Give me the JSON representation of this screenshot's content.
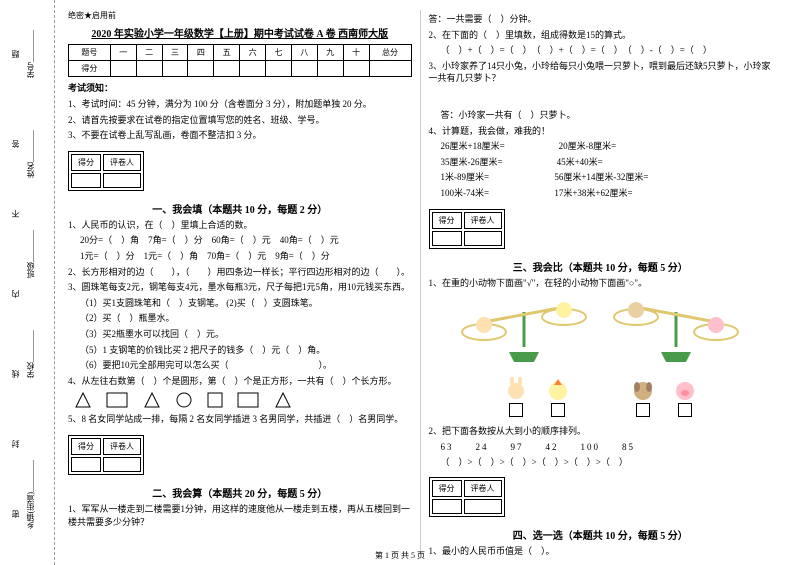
{
  "sidebar": {
    "items": [
      "学号________",
      "姓名________",
      "班级________",
      "学校________",
      "乡镇(街道)________"
    ],
    "markers": [
      "题",
      "答",
      "不",
      "内",
      "线",
      "封",
      "密"
    ]
  },
  "header": {
    "secret": "绝密★启用前",
    "title": "2020 年实验小学一年级数学【上册】期中考试试卷 A 卷 西南师大版"
  },
  "scoreTable": {
    "cols": [
      "题号",
      "一",
      "二",
      "三",
      "四",
      "五",
      "六",
      "七",
      "八",
      "九",
      "十",
      "总分"
    ],
    "row2": "得分"
  },
  "notice": {
    "label": "考试须知：",
    "items": [
      "1、考试时间：45 分钟，满分为 100 分（含卷面分 3 分），附加题单独 20 分。",
      "2、请首先按要求在试卷的指定位置填写您的姓名、班级、学号。",
      "3、不要在试卷上乱写乱画，卷面不整洁扣 3 分。"
    ]
  },
  "scorebox": {
    "c1": "得分",
    "c2": "评卷人"
  },
  "sec1": {
    "title": "一、我会填（本题共 10 分，每题 2 分）",
    "q1": "1、人民币的认识，在（　）里填上合适的数。",
    "q1lines": [
      "20分=（　）角　7角=（　）分　60角=（　）元　40角=（　）元",
      "1元=（　）分　1元=（　）角　70角=（　）元　9角=（　）分"
    ],
    "q2": "2、长方形相对的边（　　），（　　）用四条边一样长；平行四边形相对的边（　　）。",
    "q3": "3、圆珠笔每支2元，钢笔每支4元，墨水每瓶3元，尺子每把1元5角，用10元钱买东西。",
    "q3lines": [
      "（1）买1支圆珠笔和（　）支钢笔。 (2)买（　）支圆珠笔。",
      "（2）买（　）瓶墨水。",
      "（3）买2瓶墨水可以找回（　）元。",
      "（5）1 支钢笔的价钱比买 2 把尺子的钱多（　）元（　）角。",
      "（6）要把10元全部用完可以怎么买（　　　　　　　　　　）。"
    ],
    "q4": "4、从左往右数第（　）个是圆形，第（　）个是正方形，一共有（　）个长方形。",
    "q5": "5、8 名女同学站成一排，每隔 2 名女同学插进 3 名男同学，共插进（　）名男同学。"
  },
  "sec2": {
    "title": "二、我会算（本题共 20 分，每题 5 分）",
    "q1": "1、军军从一楼走到二楼需要1分钟，用这样的速度他从一楼走到五楼，再从五楼回到一楼共需要多少分钟？"
  },
  "right": {
    "ans1": "答：一共需要（　）分钟。",
    "q2": "2、在下面的（　）里填数，组成得数是15的算式。",
    "q2line": "（　）+（　）=（　）　（　）+（　）=（　）　（　）-（　）=（　）",
    "q3": "3、小玲家养了14只小兔，小玲给每只小兔喂一只萝卜，喂到最后还缺5只萝卜，小玲家一共有几只萝卜？",
    "ans3": "答：小玲家一共有（　）只萝卜。",
    "q4": "4、计算题，我会做，难我的！",
    "q4lines": [
      "26厘米+18厘米=　　　　　　20厘米-8厘米=",
      "35厘米-26厘米=　　　　　　45米+40米=",
      "1米-89厘米=　　　　　　　 56厘米+14厘米-32厘米=",
      "100米-74米=　　　　　　　 17米+38米+62厘米="
    ]
  },
  "sec3": {
    "title": "三、我会比（本题共 10 分，每题 5 分）",
    "q1": "1、在重的小动物下面画\"√\"，在轻的小动物下面画\"○\"。",
    "q2": "2、把下面各数按从大到小的顺序排列。",
    "nums": "63　　24　　97　　42　　100　　85",
    "blanks": "（　）>（　）>（　）>（　）>（　）>（　）"
  },
  "sec4": {
    "title": "四、选一选（本题共 10 分，每题 5 分）",
    "q1": "1、最小的人民币币值是（　）。"
  },
  "footer": "第 1 页 共 5 页",
  "colors": {
    "bunny": "#ffe0b0",
    "chick": "#fff2a0",
    "cat": "#e8d0a0",
    "pig": "#ffc0cb",
    "dog": "#d0b080",
    "balanceGreen": "#4a9c4a",
    "balanceBar": "#e0c870"
  }
}
